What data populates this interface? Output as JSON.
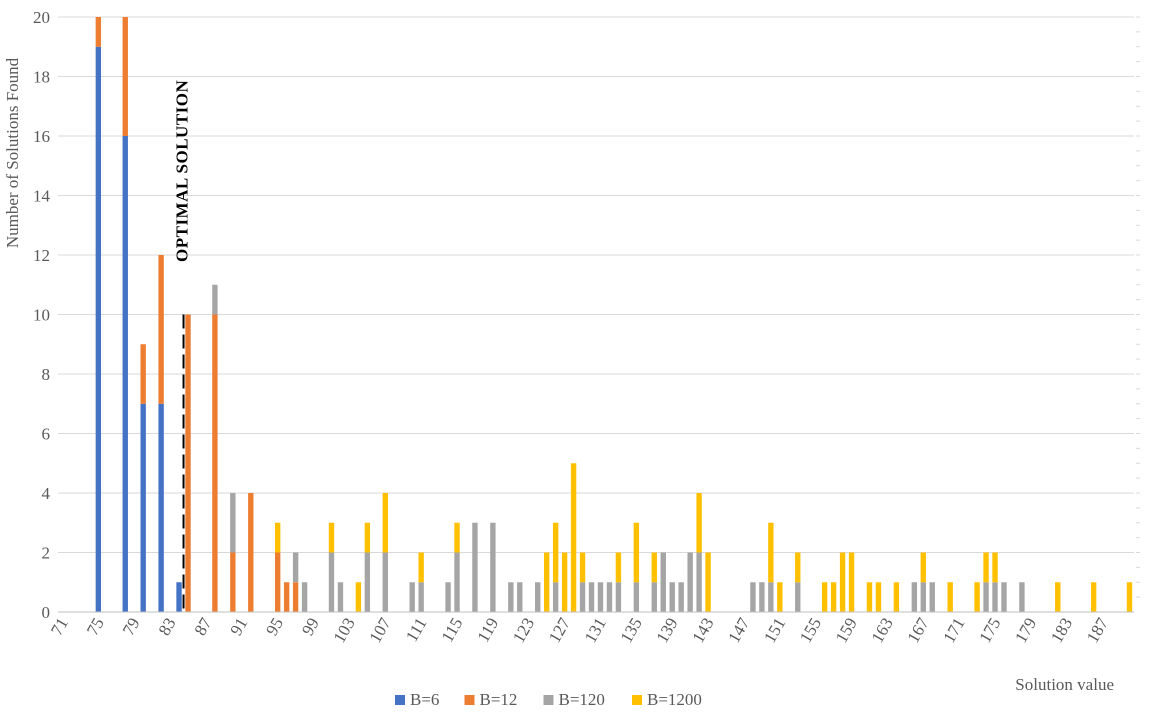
{
  "chart_data": {
    "type": "bar",
    "stacked": true,
    "xlabel": "Solution value",
    "ylabel": "Number of Solutions Found",
    "ylim": [
      0,
      20
    ],
    "yticks": [
      0,
      2,
      4,
      6,
      8,
      10,
      12,
      14,
      16,
      18,
      20
    ],
    "xlim": [
      71,
      190
    ],
    "xtick_labels": [
      "71",
      "75",
      "79",
      "83",
      "87",
      "91",
      "95",
      "99",
      "103",
      "107",
      "111",
      "115",
      "119",
      "123",
      "127",
      "131",
      "135",
      "139",
      "143",
      "147",
      "151",
      "155",
      "159",
      "163",
      "167",
      "171",
      "175",
      "179",
      "183",
      "187"
    ],
    "grid": true,
    "legend_position": "bottom",
    "annotation": {
      "label": "OPTIMAL SOLUTION",
      "x": 85,
      "y": 10
    },
    "series": [
      {
        "name": "B=6",
        "color": "#4472C4",
        "points": [
          [
            75,
            19
          ],
          [
            78,
            16
          ],
          [
            80,
            7
          ],
          [
            82,
            7
          ],
          [
            84,
            1
          ]
        ]
      },
      {
        "name": "B=12",
        "color": "#ED7D31",
        "points": [
          [
            75,
            1
          ],
          [
            78,
            4
          ],
          [
            80,
            2
          ],
          [
            82,
            5
          ],
          [
            85,
            10
          ],
          [
            88,
            10
          ],
          [
            90,
            2
          ],
          [
            92,
            4
          ],
          [
            95,
            2
          ],
          [
            96,
            1
          ],
          [
            97,
            1
          ]
        ]
      },
      {
        "name": "B=120",
        "color": "#A5A5A5",
        "points": [
          [
            88,
            1
          ],
          [
            90,
            2
          ],
          [
            97,
            1
          ],
          [
            98,
            1
          ],
          [
            101,
            2
          ],
          [
            102,
            1
          ],
          [
            105,
            2
          ],
          [
            107,
            2
          ],
          [
            110,
            1
          ],
          [
            111,
            1
          ],
          [
            114,
            1
          ],
          [
            115,
            2
          ],
          [
            117,
            3
          ],
          [
            119,
            3
          ],
          [
            121,
            1
          ],
          [
            122,
            1
          ],
          [
            124,
            1
          ],
          [
            126,
            1
          ],
          [
            129,
            1
          ],
          [
            130,
            1
          ],
          [
            131,
            1
          ],
          [
            132,
            1
          ],
          [
            133,
            1
          ],
          [
            135,
            1
          ],
          [
            137,
            1
          ],
          [
            138,
            2
          ],
          [
            139,
            1
          ],
          [
            140,
            1
          ],
          [
            141,
            2
          ],
          [
            142,
            2
          ],
          [
            148,
            1
          ],
          [
            149,
            1
          ],
          [
            150,
            1
          ],
          [
            153,
            1
          ],
          [
            166,
            1
          ],
          [
            167,
            1
          ],
          [
            168,
            1
          ],
          [
            174,
            1
          ],
          [
            175,
            1
          ],
          [
            176,
            1
          ],
          [
            178,
            1
          ]
        ]
      },
      {
        "name": "B=1200",
        "color": "#FFC000",
        "points": [
          [
            95,
            1
          ],
          [
            101,
            1
          ],
          [
            104,
            1
          ],
          [
            105,
            1
          ],
          [
            107,
            2
          ],
          [
            111,
            1
          ],
          [
            115,
            1
          ],
          [
            125,
            2
          ],
          [
            126,
            2
          ],
          [
            127,
            2
          ],
          [
            128,
            5
          ],
          [
            129,
            1
          ],
          [
            133,
            1
          ],
          [
            135,
            2
          ],
          [
            137,
            1
          ],
          [
            142,
            2
          ],
          [
            143,
            2
          ],
          [
            150,
            2
          ],
          [
            151,
            1
          ],
          [
            153,
            1
          ],
          [
            156,
            1
          ],
          [
            157,
            1
          ],
          [
            158,
            2
          ],
          [
            159,
            2
          ],
          [
            161,
            1
          ],
          [
            162,
            1
          ],
          [
            164,
            1
          ],
          [
            167,
            1
          ],
          [
            170,
            1
          ],
          [
            173,
            1
          ],
          [
            174,
            1
          ],
          [
            175,
            1
          ],
          [
            182,
            1
          ],
          [
            186,
            1
          ],
          [
            190,
            1
          ]
        ]
      }
    ]
  }
}
